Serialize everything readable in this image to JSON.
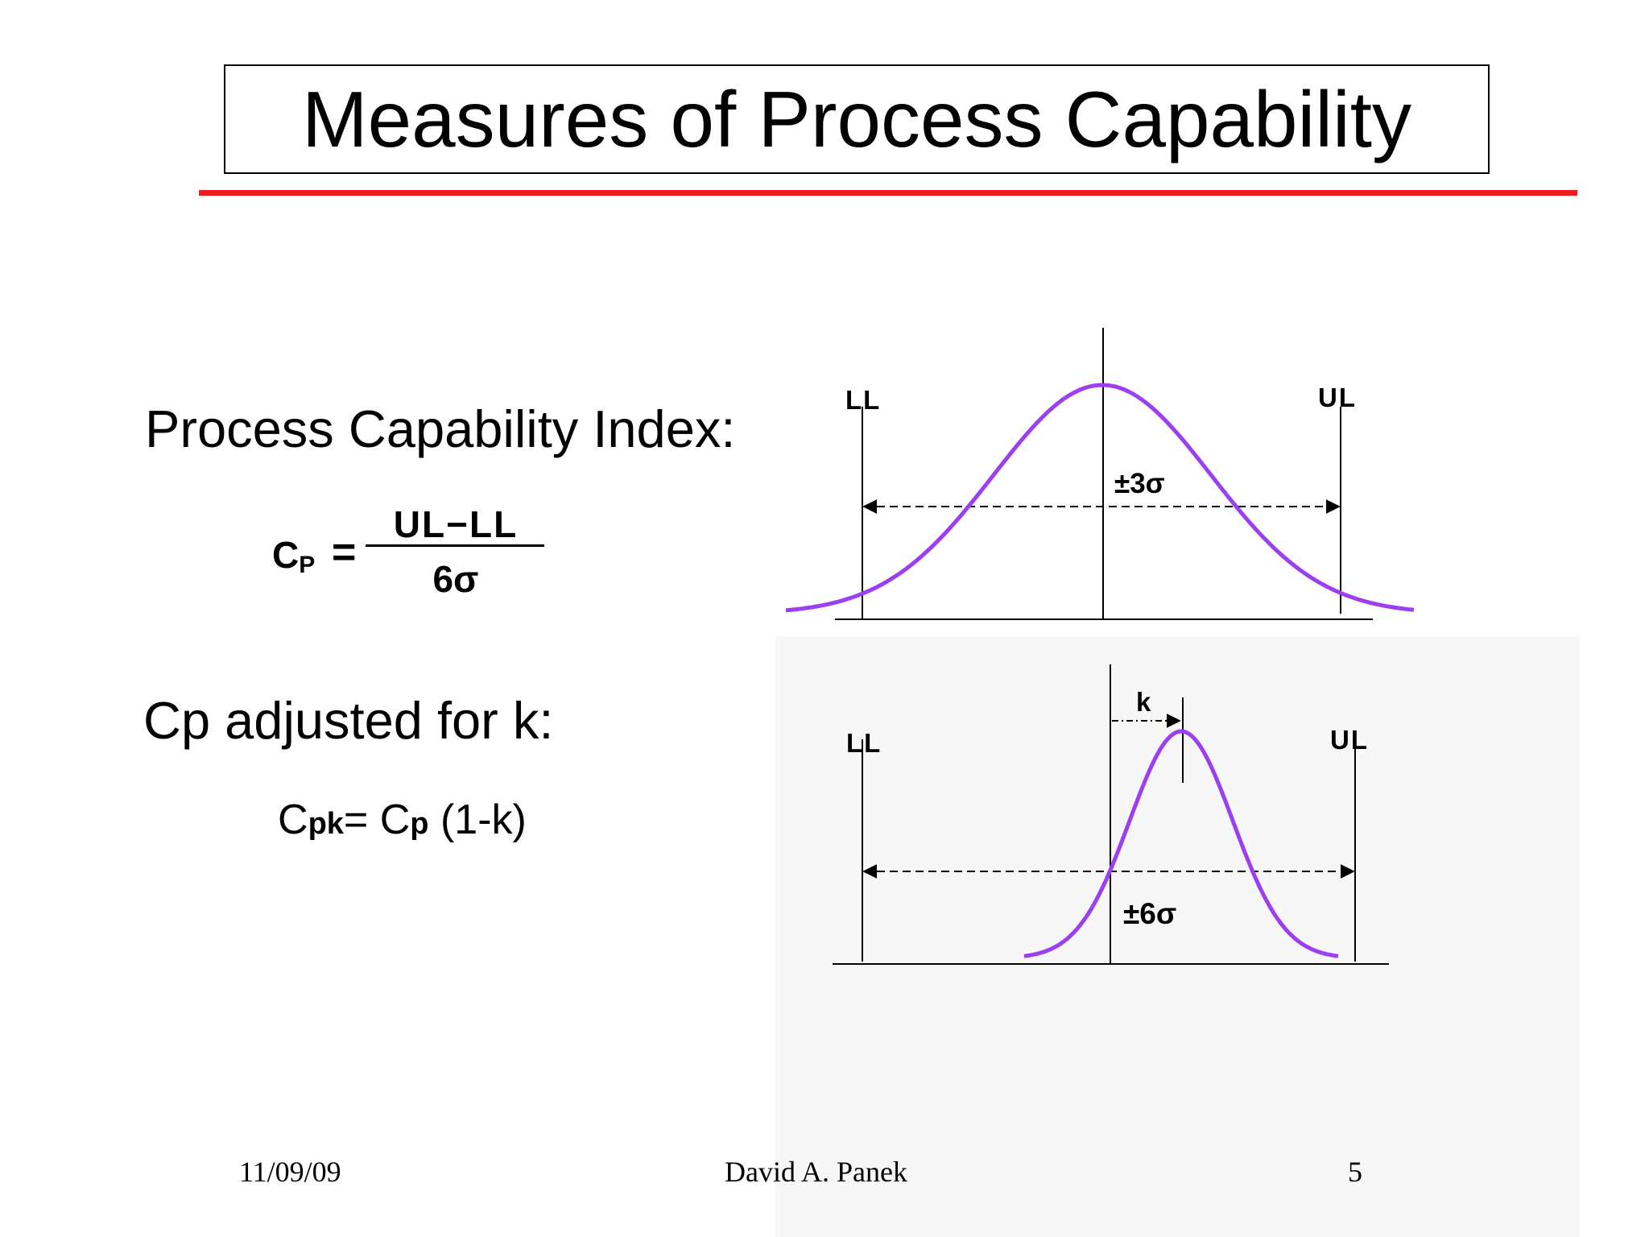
{
  "slide": {
    "title": "Measures of Process Capability",
    "cp_section": {
      "label": "Process Capability Index:",
      "formula_lhs": "C",
      "formula_lhs_sub": "P",
      "formula_eq": "=",
      "numerator": "UL−LL",
      "denominator": "6σ"
    },
    "cpk_section": {
      "label": "Cp adjusted for k:",
      "cpk_c": "C",
      "cpk_sub": "pk",
      "cpk_eq": "= C",
      "cpk_p": "p",
      "cpk_tail": " (1-k)"
    },
    "diagram_top": {
      "lower_limit_label": "LL",
      "upper_limit_label": "UL",
      "spread_label": "±3σ"
    },
    "diagram_bottom": {
      "lower_limit_label": "LL",
      "upper_limit_label": "UL",
      "shift_label": "k",
      "spread_label": "±6σ"
    },
    "footer": {
      "date": "11/09/09",
      "author": "David A. Panek",
      "page_number": "5"
    }
  },
  "colors": {
    "curve": "#9b3ff0",
    "title_rule": "#ee1c1c",
    "diagram_panel": "#f7f7f7"
  }
}
